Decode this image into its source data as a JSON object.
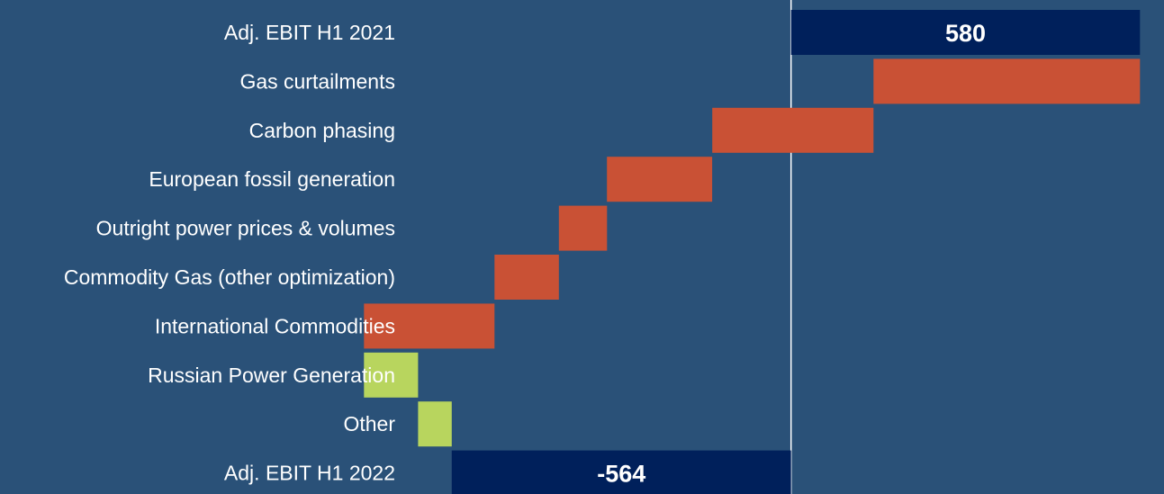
{
  "chart_data": {
    "type": "bar",
    "subtype": "waterfall",
    "orientation": "horizontal",
    "title": "",
    "xlabel": "",
    "ylabel": "",
    "grid": false,
    "legend": "none",
    "categories": [
      "Adj. EBIT H1 2021",
      "Gas curtailments",
      "Carbon phasing",
      "European fossil generation",
      "Outright power prices & volumes",
      "Commodity Gas (other optimization)",
      "International Commodities",
      "Russian Power Generation",
      "Other",
      "Adj. EBIT H1 2022"
    ],
    "bars": [
      {
        "category": "Adj. EBIT H1 2021",
        "kind": "total",
        "value": 580,
        "label": "580"
      },
      {
        "category": "Gas curtailments",
        "kind": "delta",
        "start": 580,
        "end": 137,
        "value": -443
      },
      {
        "category": "Carbon phasing",
        "kind": "delta",
        "start": 137,
        "end": -131,
        "value": -268
      },
      {
        "category": "European fossil generation",
        "kind": "delta",
        "start": -131,
        "end": -306,
        "value": -175
      },
      {
        "category": "Outright power prices & volumes",
        "kind": "delta",
        "start": -306,
        "end": -386,
        "value": -80
      },
      {
        "category": "Commodity Gas (other optimization)",
        "kind": "delta",
        "start": -386,
        "end": -493,
        "value": -107
      },
      {
        "category": "International Commodities",
        "kind": "delta",
        "start": -493,
        "end": -710,
        "value": -217
      },
      {
        "category": "Russian Power Generation",
        "kind": "delta",
        "start": -710,
        "end": -620,
        "value": 90
      },
      {
        "category": "Other",
        "kind": "delta",
        "start": -620,
        "end": -564,
        "value": 56
      },
      {
        "category": "Adj. EBIT H1 2022",
        "kind": "total",
        "value": -564,
        "label": "-564"
      }
    ],
    "xlim": [
      -1315,
      620
    ],
    "colors": {
      "background": "#2a5178",
      "total": "#00205b",
      "decrease": "#c95135",
      "increase": "#b8d55e",
      "zero_line": "#ffffff",
      "text": "#ffffff"
    }
  }
}
